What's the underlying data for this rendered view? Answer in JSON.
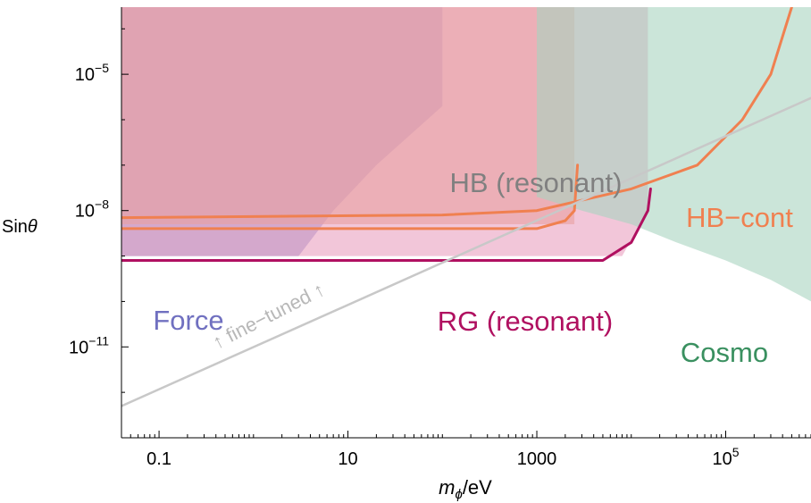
{
  "chart_data": {
    "type": "area",
    "title": "",
    "xlabel": {
      "main": "m",
      "sub": "ϕ",
      "rest": "/eV"
    },
    "ylabel": {
      "main": "Sin",
      "rest": "θ"
    },
    "x_scale": "log",
    "y_scale": "log",
    "xlim": [
      0.04,
      800000
    ],
    "ylim": [
      1e-13,
      0.0003
    ],
    "x_ticks": [
      {
        "value": 0.1,
        "base": "0.1",
        "exp": ""
      },
      {
        "value": 10,
        "base": "10",
        "exp": ""
      },
      {
        "value": 1000,
        "base": "1000",
        "exp": ""
      },
      {
        "value": 100000,
        "base": "10",
        "exp": "5"
      }
    ],
    "y_ticks": [
      {
        "value": 1e-05,
        "base": "10",
        "exp": "−5"
      },
      {
        "value": 1e-08,
        "base": "10",
        "exp": "−8"
      },
      {
        "value": 1e-11,
        "base": "10",
        "exp": "−11"
      }
    ],
    "regions": [
      {
        "name": "Force",
        "color": "#8080c8",
        "points": [
          [
            0.04,
            1e-12
          ],
          [
            0.04,
            1e-09
          ],
          [
            0.3,
            1e-09
          ],
          [
            3,
            1e-09
          ],
          [
            7,
            1e-08
          ],
          [
            20,
            1e-07
          ],
          [
            100,
            2e-06
          ],
          [
            100,
            0.0003
          ],
          [
            0.04,
            0.0003
          ]
        ]
      },
      {
        "name": "RG (resonant)",
        "color": "#e9a0c0",
        "points": [
          [
            0.04,
            1e-09
          ],
          [
            8000,
            1e-09
          ],
          [
            15000,
            1e-08
          ],
          [
            15000,
            0.0003
          ],
          [
            0.04,
            0.0003
          ]
        ]
      },
      {
        "name": "HB (resonant)",
        "color": "#e8a0a0",
        "points": [
          [
            0.04,
            5e-09
          ],
          [
            2500,
            5e-09
          ],
          [
            2500,
            0.0003
          ],
          [
            0.04,
            0.0003
          ]
        ]
      },
      {
        "name": "Cosmo",
        "color": "#a8d4c0",
        "points": [
          [
            1000,
            0.0003
          ],
          [
            1000,
            2e-08
          ],
          [
            3000,
            1e-08
          ],
          [
            10000,
            5e-09
          ],
          [
            30000,
            2e-09
          ],
          [
            100000,
            8e-10
          ],
          [
            300000,
            3e-10
          ],
          [
            800000,
            1e-10
          ],
          [
            800000,
            0.0003
          ]
        ]
      }
    ],
    "series": [
      {
        "name": "HB−cont",
        "color": "#f08050",
        "points": [
          [
            0.04,
            7e-09
          ],
          [
            100,
            8e-09
          ],
          [
            1000,
            1e-08
          ],
          [
            10000,
            3e-08
          ],
          [
            50000,
            1e-07
          ],
          [
            150000,
            1e-06
          ],
          [
            300000,
            1e-05
          ],
          [
            500000,
            0.0003
          ]
        ]
      },
      {
        "name": "HB (resonant)",
        "color": "#f08050",
        "points": [
          [
            0.04,
            4e-09
          ],
          [
            1000,
            4e-09
          ],
          [
            2000,
            6e-09
          ],
          [
            2500,
            1e-08
          ],
          [
            2700,
            1e-07
          ]
        ]
      },
      {
        "name": "RG (resonant)",
        "color": "#b01060",
        "points": [
          [
            0.04,
            8e-10
          ],
          [
            5000,
            8e-10
          ],
          [
            10000,
            2e-09
          ],
          [
            15000,
            1e-08
          ],
          [
            16000,
            3e-08
          ]
        ]
      },
      {
        "name": "fine-tuned",
        "color": "#c8c8c8",
        "points": [
          [
            0.04,
            5e-13
          ],
          [
            800000,
            3e-06
          ]
        ]
      }
    ],
    "annotations": [
      {
        "text": "HB (resonant)",
        "color": "#808080"
      },
      {
        "text": "HB−cont",
        "color": "#f08050"
      },
      {
        "text": "Force",
        "color": "#7070c0"
      },
      {
        "text": "RG (resonant)",
        "color": "#b01060"
      },
      {
        "text": "Cosmo",
        "color": "#3a9060"
      },
      {
        "text": "↑ fine−tuned ↑",
        "color": "#b8b8b8"
      }
    ],
    "grid": false,
    "legend": "none"
  }
}
